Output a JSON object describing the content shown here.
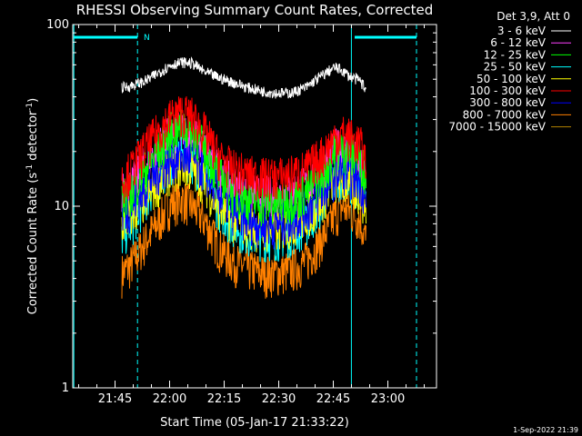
{
  "chart_data": {
    "type": "line",
    "title": "RHESSI Observing Summary Count Rates, Corrected",
    "xlabel": "Start Time (05-Jan-17 21:33:22)",
    "ylabel_main": "Corrected Count Rate (s",
    "ylabel_sup1": "-1",
    "ylabel_mid": " detector",
    "ylabel_sup2": "-1",
    "ylabel_end": ")",
    "yscale": "log",
    "ylim": [
      1,
      100
    ],
    "y_ticks": [
      {
        "value": 1,
        "label": "1"
      },
      {
        "value": 10,
        "label": "10"
      },
      {
        "value": 100,
        "label": "100"
      }
    ],
    "xlim_minutes": [
      0,
      100
    ],
    "x_ticks": [
      {
        "minute": 11.63,
        "label": "21:45"
      },
      {
        "minute": 26.63,
        "label": "22:00"
      },
      {
        "minute": 41.63,
        "label": "22:15"
      },
      {
        "minute": 56.63,
        "label": "22:30"
      },
      {
        "minute": 71.63,
        "label": "22:45"
      },
      {
        "minute": 86.63,
        "label": "23:00"
      }
    ],
    "legend_title": "Det 3,9, Att 0",
    "legend_placement": "right",
    "night_marker": "N",
    "footer": "1-Sep-2022 21:39",
    "series": [
      {
        "name": "3 - 6 keV",
        "color": "#ffffff",
        "x": [
          13.5,
          16,
          20,
          24,
          27,
          30,
          33,
          36,
          40,
          44,
          48,
          52,
          56,
          60,
          64,
          67,
          70,
          72,
          74,
          76,
          79,
          80.5
        ],
        "y": [
          45,
          46,
          49,
          55,
          60,
          62,
          61,
          55,
          51,
          48,
          45,
          43,
          42,
          42,
          45,
          50,
          55,
          58,
          56,
          52,
          49,
          44
        ]
      },
      {
        "name": "6 - 12 keV",
        "color": "#ff40ff",
        "x": [
          13.5,
          16,
          20,
          24,
          27,
          30,
          33,
          36,
          40,
          44,
          48,
          52,
          56,
          60,
          64,
          67,
          70,
          72,
          74,
          76,
          79,
          80.5
        ],
        "y": [
          12,
          13,
          17,
          22,
          25,
          26,
          25,
          21,
          16,
          13,
          12,
          11.5,
          11.5,
          12,
          13,
          15,
          18,
          21,
          21,
          19,
          17,
          14
        ]
      },
      {
        "name": "12 - 25 keV",
        "color": "#00ff00",
        "x": [
          13.5,
          16,
          20,
          24,
          27,
          30,
          33,
          36,
          40,
          44,
          48,
          52,
          56,
          60,
          64,
          67,
          70,
          72,
          74,
          76,
          79,
          80.5
        ],
        "y": [
          11,
          12,
          16,
          21,
          26,
          28,
          26,
          21,
          15,
          12,
          11,
          10.5,
          10.5,
          11,
          12,
          14,
          17,
          20,
          21,
          20,
          18,
          15
        ]
      },
      {
        "name": "25 - 50 keV",
        "color": "#00ffff",
        "x": [
          13.5,
          16,
          20,
          24,
          27,
          30,
          33,
          36,
          40,
          44,
          48,
          52,
          56,
          60,
          64,
          67,
          70,
          72,
          74,
          76,
          79,
          80.5
        ],
        "y": [
          7,
          8,
          11,
          15,
          18,
          19,
          18,
          15,
          10,
          8,
          7.2,
          6.8,
          6.8,
          7.2,
          8,
          9.5,
          12,
          14,
          15,
          14,
          13,
          10
        ]
      },
      {
        "name": "50 - 100 keV",
        "color": "#ffff00",
        "x": [
          13.5,
          16,
          20,
          24,
          27,
          30,
          33,
          36,
          40,
          44,
          48,
          52,
          56,
          60,
          64,
          67,
          70,
          72,
          74,
          76,
          79,
          80.5
        ],
        "y": [
          8,
          9,
          11,
          14,
          16,
          17,
          16,
          14,
          10,
          8.5,
          8,
          7.5,
          7.5,
          8,
          9,
          10,
          12,
          14,
          14,
          13,
          12,
          10
        ]
      },
      {
        "name": "100 - 300 keV",
        "color": "#ff0000",
        "x": [
          13.5,
          16,
          20,
          24,
          27,
          30,
          33,
          36,
          40,
          44,
          48,
          52,
          56,
          60,
          64,
          67,
          70,
          72,
          74,
          76,
          79,
          80.5
        ],
        "y": [
          14,
          16,
          21,
          27,
          31,
          33,
          31,
          26,
          19,
          16,
          15,
          14.5,
          14.5,
          15,
          16,
          18,
          21,
          24,
          25,
          24,
          22,
          18
        ]
      },
      {
        "name": "300 - 800 keV",
        "color": "#0000ff",
        "x": [
          13.5,
          16,
          20,
          24,
          27,
          30,
          33,
          36,
          40,
          44,
          48,
          52,
          56,
          60,
          64,
          67,
          70,
          72,
          74,
          76,
          79,
          80.5
        ],
        "y": [
          9,
          10,
          13,
          16,
          18,
          19,
          18,
          16,
          12,
          9.5,
          8.5,
          8,
          8,
          8.5,
          9.5,
          11,
          13,
          15,
          16,
          15,
          14,
          11
        ]
      },
      {
        "name": "800 - 7000 keV",
        "color": "#ff8000",
        "x": [
          13.5,
          16,
          20,
          24,
          27,
          30,
          33,
          36,
          40,
          44,
          48,
          52,
          56,
          60,
          64,
          67,
          70,
          72,
          74,
          76,
          79,
          80.5
        ],
        "y": [
          4.3,
          4.8,
          6.5,
          8.5,
          10.5,
          11,
          10,
          8.5,
          6,
          5,
          4.6,
          4.3,
          4.3,
          4.5,
          5,
          6,
          7.5,
          9,
          10,
          9.5,
          8.5,
          6.5
        ]
      },
      {
        "name": "7000 - 15000 keV",
        "color": "#b08000",
        "x": [],
        "y": []
      }
    ],
    "markers": [
      {
        "kind": "solid",
        "minute": 0.3,
        "color": "#00ffff"
      },
      {
        "kind": "dashed",
        "minute": 17.8,
        "color": "#00ffff"
      },
      {
        "kind": "solid",
        "minute": 76.6,
        "color": "#00ffff"
      },
      {
        "kind": "dashed",
        "minute": 94.5,
        "color": "#00ffff"
      }
    ],
    "top_bars": [
      {
        "from": 0.3,
        "to": 17.8,
        "color": "#00ffff"
      },
      {
        "from": 77.5,
        "to": 94.5,
        "color": "#00ffff"
      }
    ]
  }
}
